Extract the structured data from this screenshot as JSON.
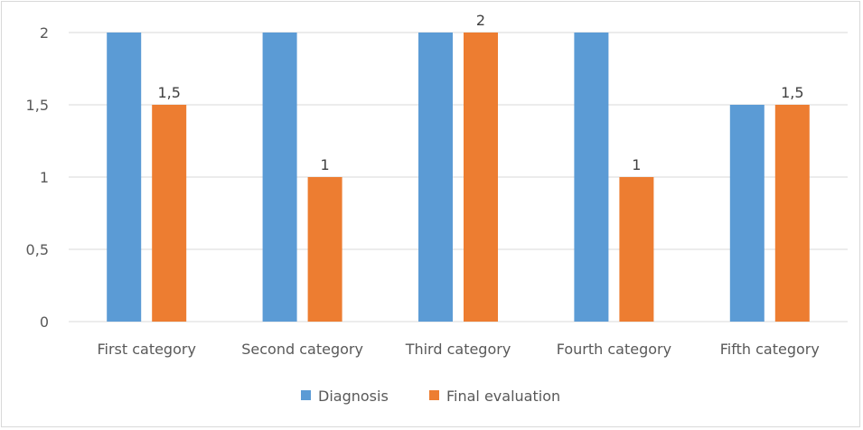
{
  "chart_data": {
    "type": "bar",
    "categories": [
      "First category",
      "Second category",
      "Third category",
      "Fourth category",
      "Fifth category"
    ],
    "series": [
      {
        "name": "Diagnosis",
        "values": [
          2,
          2,
          2,
          2,
          1.5
        ],
        "color": "#5b9bd5",
        "data_labels": [
          "",
          "",
          "",
          "",
          ""
        ]
      },
      {
        "name": "Final evaluation",
        "values": [
          1.5,
          1,
          2,
          1,
          1.5
        ],
        "color": "#ed7d31",
        "data_labels": [
          "1,5",
          "1",
          "2",
          "1",
          "1,5"
        ]
      }
    ],
    "yticks": [
      "0",
      "0,5",
      "1",
      "1,5",
      "2"
    ],
    "ytick_values": [
      0,
      0.5,
      1,
      1.5,
      2
    ],
    "ylim": [
      0,
      2
    ],
    "grid": true,
    "gridline_color": "#d9d9d9",
    "legend_position": "bottom"
  }
}
